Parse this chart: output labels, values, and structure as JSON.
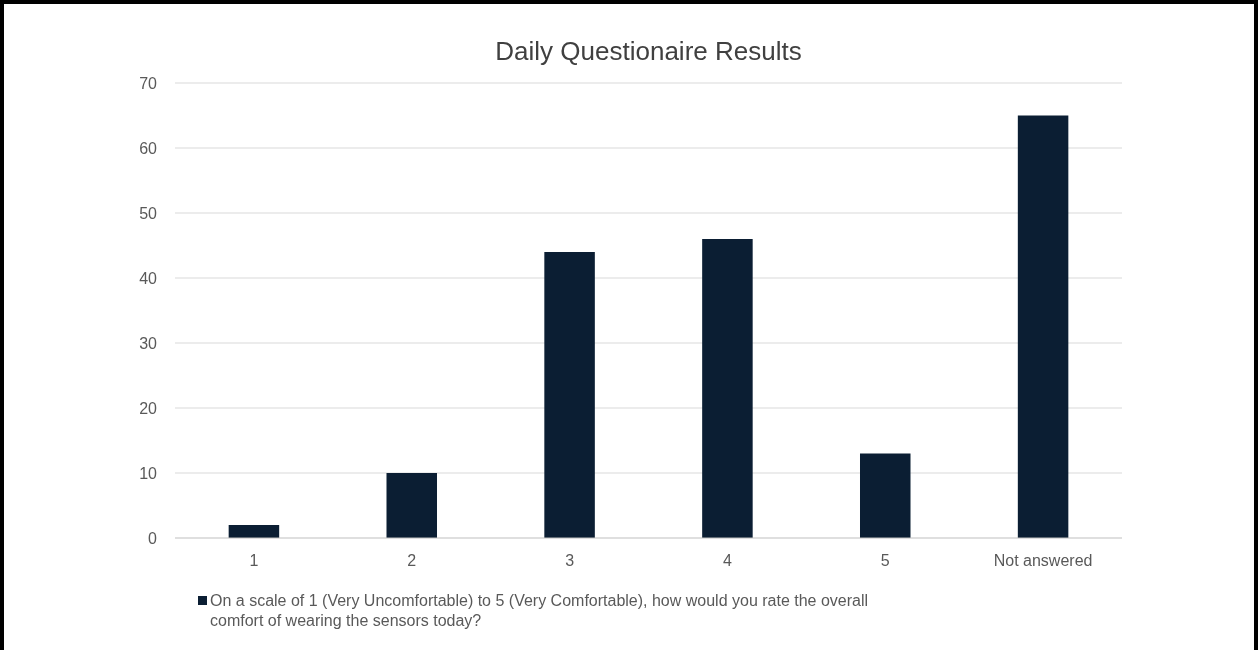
{
  "chart_data": {
    "type": "bar",
    "title": "Daily Questionaire Results",
    "categories": [
      "1",
      "2",
      "3",
      "4",
      "5",
      "Not answered"
    ],
    "series": [
      {
        "name": "On a scale of 1 (Very Uncomfortable) to 5 (Very Comfortable), how would you rate the overall comfort of wearing the sensors today?",
        "color": "#0b1e33",
        "values": [
          2,
          10,
          44,
          46,
          13,
          65
        ]
      }
    ],
    "ylim": [
      0,
      70
    ],
    "yticks": [
      0,
      10,
      20,
      30,
      40,
      50,
      60,
      70
    ],
    "grid": "y",
    "legend": "bottom"
  }
}
